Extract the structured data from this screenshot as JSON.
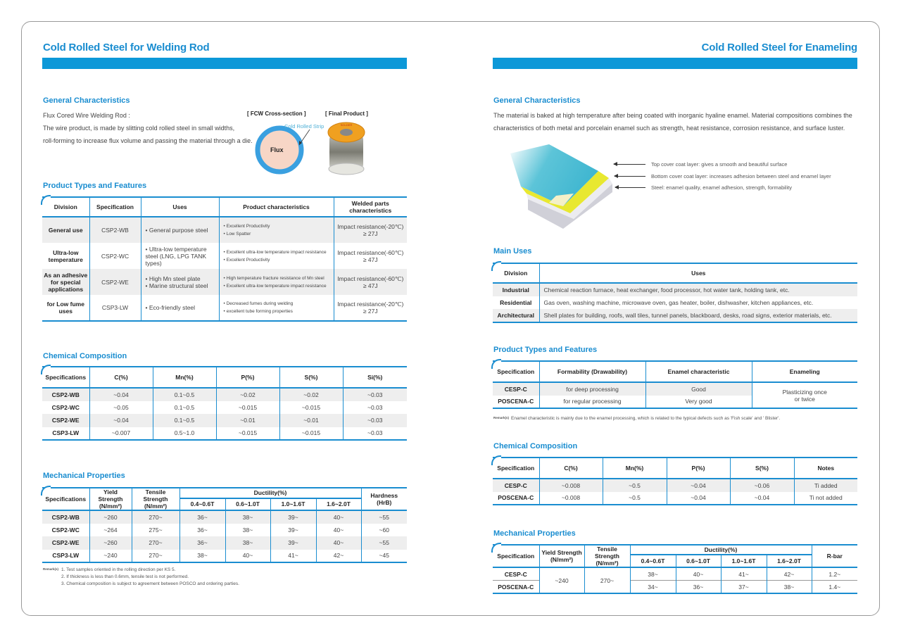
{
  "left": {
    "title": "Cold Rolled Steel for Welding Rod",
    "general": {
      "heading": "General Characteristics",
      "lines": [
        "Flux Cored Wire Welding Rod :",
        "The wire product, is made by slitting cold rolled steel in small widths,",
        "roll-forming to increase flux volume and passing the material through a die."
      ],
      "fcw_caption": "[ FCW Cross-section ]",
      "product_caption": "[ Final Product ]",
      "strip_label": "Cold Rolled Strip",
      "flux_label": "Flux",
      "spool_label": "SOLDER"
    },
    "product_types": {
      "heading": "Product Types and Features",
      "headers": [
        "Division",
        "Specification",
        "Uses",
        "Product characteristics",
        "Welded parts characteristics"
      ],
      "rows": [
        [
          "General use",
          "CSP2-WB",
          "• General purpose steel",
          "• Excellent Productivity\n• Low Spatter",
          "Impact resistance(-20℃)\n≥ 27J"
        ],
        [
          "Ultra-low temperature",
          "CSP2-WC",
          "• Ultra-low temperature steel (LNG, LPG TANK types)",
          "• Excellent ultra-low temperature impact resistance\n• Excellent Productivity",
          "Impact resistance(-60℃)\n≥ 47J"
        ],
        [
          "As an adhesive for special applications",
          "CSP2-WE",
          "• High Mn steel plate\n• Marine structural steel",
          "• High temperature fracture resistance of Mn steel\n• Excellent ultra-low temperature impact resistance",
          "Impact resistance(-60℃)\n≥ 47J"
        ],
        [
          "for Low fume uses",
          "CSP3-LW",
          "• Eco-friendly steel",
          "• Decreased fumes during welding\n• excellent tube forming properties",
          "Impact resistance(-20℃)\n≥ 27J"
        ]
      ]
    },
    "chemical": {
      "heading": "Chemical Composition",
      "headers": [
        "Specifications",
        "C(%)",
        "Mn(%)",
        "P(%)",
        "S(%)",
        "Si(%)"
      ],
      "rows": [
        [
          "CSP2-WB",
          "~0.04",
          "0.1~0.5",
          "~0.02",
          "~0.02",
          "~0.03"
        ],
        [
          "CSP2-WC",
          "~0.05",
          "0.1~0.5",
          "~0.015",
          "~0.015",
          "~0.03"
        ],
        [
          "CSP2-WE",
          "~0.04",
          "0.1~0.5",
          "~0.01",
          "~0.01",
          "~0.03"
        ],
        [
          "CSP3-LW",
          "~0.007",
          "0.5~1.0",
          "~0.015",
          "~0.015",
          "~0.03"
        ]
      ]
    },
    "mechanical": {
      "heading": "Mechanical Properties",
      "headers": [
        "Specifications",
        "Yield Strength (N/mm²)",
        "Tensile Strength (N/mm²)",
        "Ductility(%)",
        "Hardness (HrB)"
      ],
      "subheaders": [
        "0.4~0.6T",
        "0.6~1.0T",
        "1.0~1.6T",
        "1.6~2.0T"
      ],
      "rows": [
        [
          "CSP2-WB",
          "~260",
          "270~",
          "36~",
          "38~",
          "39~",
          "40~",
          "~55"
        ],
        [
          "CSP2-WC",
          "~264",
          "275~",
          "36~",
          "38~",
          "39~",
          "40~",
          "~60"
        ],
        [
          "CSP2-WE",
          "~260",
          "270~",
          "36~",
          "38~",
          "39~",
          "40~",
          "~55"
        ],
        [
          "CSP3-LW",
          "~240",
          "270~",
          "38~",
          "40~",
          "41~",
          "42~",
          "~45"
        ]
      ],
      "remarks_label": "Remark(s)",
      "remarks": [
        "1. Test samples oriented in the rolling direction per KS 5.",
        "2. If thickness is less than 0.6mm, tensile test is not performed.",
        "3. Chemical composition is subject to agreement between POSCO and ordering parties."
      ]
    }
  },
  "right": {
    "title": "Cold Rolled Steel for Enameling",
    "general": {
      "heading": "General Characteristics",
      "lines": [
        "The material is baked at high temperature after being coated with inorganic hyaline enamel. Material compositions combines the",
        "characteristics of both metal and porcelain enamel such as strength, heat resistance, corrosion resistance, and surface luster."
      ],
      "layers": [
        "Top cover coat layer: gives a smooth and beautiful surface",
        "Bottom cover coat layer: increases adhesion between steel and enamel layer",
        "Steel: enamel quality, enamel adhesion, strength, formability"
      ]
    },
    "main_uses": {
      "heading": "Main Uses",
      "headers": [
        "Division",
        "Uses"
      ],
      "rows": [
        [
          "Industrial",
          "Chemical reaction furnace, heat exchanger, food processor, hot water tank, holding tank, etc."
        ],
        [
          "Residential",
          "Gas oven, washing machine, microwave oven, gas heater, boiler, dishwasher, kitchen appliances, etc."
        ],
        [
          "Architectural",
          "Shell plates for building, roofs, wall tiles, tunnel panels, blackboard, desks, road signs, exterior materials, etc."
        ]
      ]
    },
    "product_types": {
      "heading": "Product Types and Features",
      "headers": [
        "Specification",
        "Formability (Drawability)",
        "Enamel characteristic",
        "Enameling"
      ],
      "rows": [
        [
          "CESP-C",
          "for deep processing",
          "Good",
          "Plasticizing once\nor twice"
        ],
        [
          "POSCENA-C",
          "for regular processing",
          "Very good"
        ]
      ],
      "remarks_label": "Remark(s)",
      "remark": "Enamel characteristic is mainly due to the enamel processing, which is related to the typical defects such as 'Fish scale' and ' Blister'."
    },
    "chemical": {
      "heading": "Chemical Composition",
      "headers": [
        "Specification",
        "C(%)",
        "Mn(%)",
        "P(%)",
        "S(%)",
        "Notes"
      ],
      "rows": [
        [
          "CESP-C",
          "~0.008",
          "~0.5",
          "~0.04",
          "~0.06",
          "Ti added"
        ],
        [
          "POSCENA-C",
          "~0.008",
          "~0.5",
          "~0.04",
          "~0.04",
          "Ti not added"
        ]
      ]
    },
    "mechanical": {
      "heading": "Mechanical Properties",
      "headers": [
        "Specification",
        "Yield Strength (N/mm²)",
        "Tensile Strength (N/mm²)",
        "Ductility(%)",
        "R-bar"
      ],
      "subheaders": [
        "0.4~0.6T",
        "0.6~1.0T",
        "1.0~1.6T",
        "1.6~2.0T"
      ],
      "rows": [
        [
          "CESP-C",
          "~240",
          "270~",
          "38~",
          "40~",
          "41~",
          "42~",
          "1.2~"
        ],
        [
          "POSCENA-C",
          "34~",
          "36~",
          "37~",
          "38~",
          "1.4~"
        ]
      ]
    }
  },
  "colors": {
    "accent": "#1a8dd0",
    "bar": "#0c98d8",
    "row_alt": "#eeeeee"
  }
}
